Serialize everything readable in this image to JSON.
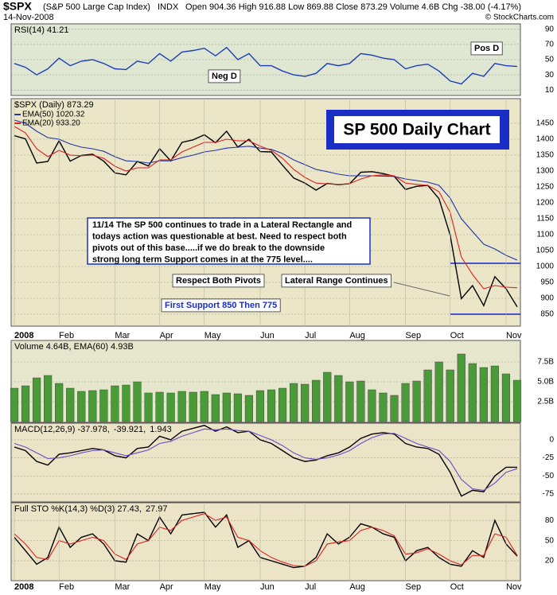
{
  "header": {
    "symbol": "$SPX",
    "name": "(S&P 500 Large Cap Index)",
    "exchange": "INDX",
    "date": "14-Nov-2008",
    "quote": "Open 904.36 High 916.88 Low 869.88 Close 873.29 Volume 4.6B Chg -38.00 (-4.17%)",
    "credit": "© StockCharts.com"
  },
  "chart_data": [
    {
      "type": "line",
      "title": "RSI(14) 41.21",
      "ylim": [
        5,
        95
      ],
      "yticks": [
        10,
        30,
        50,
        70,
        90
      ],
      "grid": true,
      "series": [
        {
          "color": "#1c3fb8",
          "values": [
            45,
            40,
            30,
            38,
            52,
            42,
            48,
            50,
            45,
            38,
            37,
            48,
            45,
            58,
            48,
            60,
            62,
            65,
            55,
            66,
            50,
            58,
            42,
            42,
            35,
            30,
            28,
            32,
            45,
            42,
            45,
            58,
            56,
            52,
            50,
            38,
            42,
            44,
            35,
            22,
            18,
            32,
            28,
            45,
            42,
            41
          ]
        }
      ],
      "annotations": [
        "Pos D",
        "Neg D"
      ]
    },
    {
      "type": "line",
      "title": "$SPX (Daily) 873.29",
      "ylim": [
        820,
        1520
      ],
      "yticks": [
        850,
        900,
        950,
        1000,
        1050,
        1100,
        1150,
        1200,
        1250,
        1300,
        1350,
        1400,
        1450
      ],
      "grid": true,
      "categories": [
        "2008",
        null,
        null,
        null,
        "Feb",
        null,
        null,
        null,
        null,
        "Mar",
        null,
        null,
        null,
        "Apr",
        null,
        null,
        null,
        "May",
        null,
        null,
        null,
        null,
        "Jun",
        null,
        null,
        null,
        "Jul",
        null,
        null,
        null,
        "Aug",
        null,
        null,
        null,
        null,
        "Sep",
        null,
        null,
        null,
        "Oct",
        null,
        null,
        null,
        null,
        "Nov",
        null
      ],
      "series": [
        {
          "color": "#000000",
          "values": [
            1411,
            1401,
            1325,
            1330,
            1395,
            1331,
            1349,
            1353,
            1331,
            1294,
            1288,
            1330,
            1316,
            1370,
            1332,
            1390,
            1398,
            1414,
            1389,
            1425,
            1375,
            1400,
            1361,
            1360,
            1318,
            1278,
            1262,
            1240,
            1261,
            1257,
            1260,
            1296,
            1298,
            1292,
            1283,
            1242,
            1252,
            1255,
            1213,
            1099,
            899,
            940,
            877,
            968,
            930,
            873
          ]
        },
        {
          "name": "EMA(50) 1020.32",
          "color": "#2233aa",
          "values": [
            1460,
            1450,
            1425,
            1405,
            1400,
            1385,
            1375,
            1370,
            1362,
            1345,
            1332,
            1330,
            1325,
            1332,
            1332,
            1342,
            1350,
            1360,
            1365,
            1372,
            1375,
            1378,
            1372,
            1368,
            1355,
            1335,
            1320,
            1305,
            1298,
            1290,
            1285,
            1285,
            1285,
            1284,
            1283,
            1275,
            1270,
            1265,
            1255,
            1215,
            1150,
            1110,
            1070,
            1055,
            1035,
            1020
          ]
        },
        {
          "name": "EMA(20) 933.20",
          "color": "#dd2020",
          "values": [
            1440,
            1420,
            1370,
            1345,
            1365,
            1350,
            1348,
            1350,
            1340,
            1315,
            1300,
            1310,
            1310,
            1335,
            1335,
            1360,
            1375,
            1390,
            1390,
            1400,
            1395,
            1395,
            1378,
            1365,
            1340,
            1305,
            1280,
            1262,
            1260,
            1258,
            1260,
            1275,
            1285,
            1288,
            1285,
            1262,
            1258,
            1255,
            1235,
            1170,
            1030,
            975,
            930,
            940,
            935,
            933
          ]
        }
      ],
      "hlines": [
        850,
        1010
      ],
      "annotations": [
        "SP 500 Daily Chart",
        "11/14  The SP 500 continues to trade in a Lateral Rectangle and",
        "todays action was questionable at best.  Need to respect both",
        "pivots out of this base.....if we do break to the downside",
        "strong long term Support comes in at the 775 level....",
        "Respect Both Pivots",
        "Lateral Range Continues",
        "First Support 850 Then 775"
      ]
    },
    {
      "type": "bar",
      "title": "Volume 4.64B, EMA(60) 4.93B",
      "color": "#4a9a3a",
      "ylim": [
        0,
        9.5
      ],
      "yticks": [
        {
          "value": 2.5,
          "label": "2.5B"
        },
        {
          "value": 5,
          "label": "5.0B"
        },
        {
          "value": 7.5,
          "label": "7.5B"
        }
      ],
      "grid": true,
      "values": [
        4.2,
        4.5,
        5.5,
        5.8,
        4.8,
        4.2,
        3.8,
        3.9,
        4.0,
        4.5,
        4.6,
        5.0,
        3.6,
        3.7,
        3.6,
        3.8,
        3.7,
        3.8,
        3.4,
        3.6,
        3.5,
        3.3,
        3.9,
        4.0,
        4.2,
        4.8,
        4.7,
        5.2,
        6.2,
        5.8,
        5.0,
        5.1,
        4.0,
        3.6,
        3.3,
        4.8,
        5.1,
        6.5,
        7.5,
        6.5,
        8.5,
        7.3,
        6.8,
        7.0,
        6.0,
        5.2
      ]
    },
    {
      "type": "line",
      "ylim": [
        -85,
        22
      ],
      "yticks": [
        -75,
        -50,
        -25,
        0
      ],
      "grid": true,
      "histogram_label": "1.943",
      "series": [
        {
          "name": "MACD(12,26,9) -37.978,",
          "color": "#000000",
          "values": [
            -10,
            -15,
            -30,
            -35,
            -20,
            -18,
            -15,
            -12,
            -14,
            -22,
            -25,
            -12,
            -10,
            5,
            0,
            12,
            16,
            20,
            12,
            18,
            10,
            12,
            0,
            -5,
            -15,
            -25,
            -30,
            -28,
            -22,
            -18,
            -10,
            2,
            8,
            10,
            8,
            -5,
            -10,
            -12,
            -20,
            -45,
            -78,
            -70,
            -72,
            -50,
            -38,
            -38
          ]
        },
        {
          "name": "-39.921,",
          "color": "#6a4ad0",
          "values": [
            -5,
            -10,
            -18,
            -26,
            -25,
            -22,
            -18,
            -15,
            -14,
            -18,
            -22,
            -18,
            -14,
            -5,
            -2,
            5,
            10,
            15,
            14,
            15,
            13,
            12,
            6,
            0,
            -8,
            -18,
            -25,
            -27,
            -25,
            -21,
            -15,
            -5,
            3,
            8,
            9,
            2,
            -5,
            -10,
            -15,
            -30,
            -55,
            -68,
            -70,
            -60,
            -45,
            -40
          ]
        }
      ]
    },
    {
      "type": "line",
      "ylim": [
        0,
        105
      ],
      "yticks": [
        20,
        50,
        80
      ],
      "grid": true,
      "categories": [
        "2008",
        null,
        null,
        null,
        "Feb",
        null,
        null,
        null,
        null,
        "Mar",
        null,
        null,
        null,
        "Apr",
        null,
        null,
        null,
        "May",
        null,
        null,
        null,
        null,
        "Jun",
        null,
        null,
        null,
        "Jul",
        null,
        null,
        null,
        "Aug",
        null,
        null,
        null,
        null,
        "Sep",
        null,
        null,
        null,
        "Oct",
        null,
        null,
        null,
        null,
        "Nov",
        null
      ],
      "series": [
        {
          "name": "Full STO %K(14,3) %D(3) 27.43,",
          "color": "#000000",
          "values": [
            55,
            35,
            15,
            25,
            70,
            40,
            55,
            60,
            45,
            20,
            18,
            60,
            50,
            85,
            60,
            88,
            90,
            92,
            70,
            88,
            40,
            50,
            25,
            20,
            15,
            10,
            12,
            25,
            60,
            45,
            55,
            75,
            70,
            60,
            55,
            20,
            35,
            40,
            25,
            15,
            12,
            35,
            25,
            80,
            45,
            27
          ]
        },
        {
          "name": "27.97",
          "color": "#dd2020",
          "values": [
            60,
            45,
            25,
            22,
            50,
            45,
            50,
            55,
            50,
            30,
            22,
            45,
            50,
            70,
            65,
            80,
            85,
            90,
            80,
            85,
            55,
            50,
            35,
            25,
            18,
            13,
            12,
            20,
            45,
            48,
            50,
            65,
            70,
            65,
            57,
            30,
            32,
            38,
            30,
            20,
            14,
            28,
            28,
            60,
            55,
            28
          ]
        }
      ]
    }
  ]
}
